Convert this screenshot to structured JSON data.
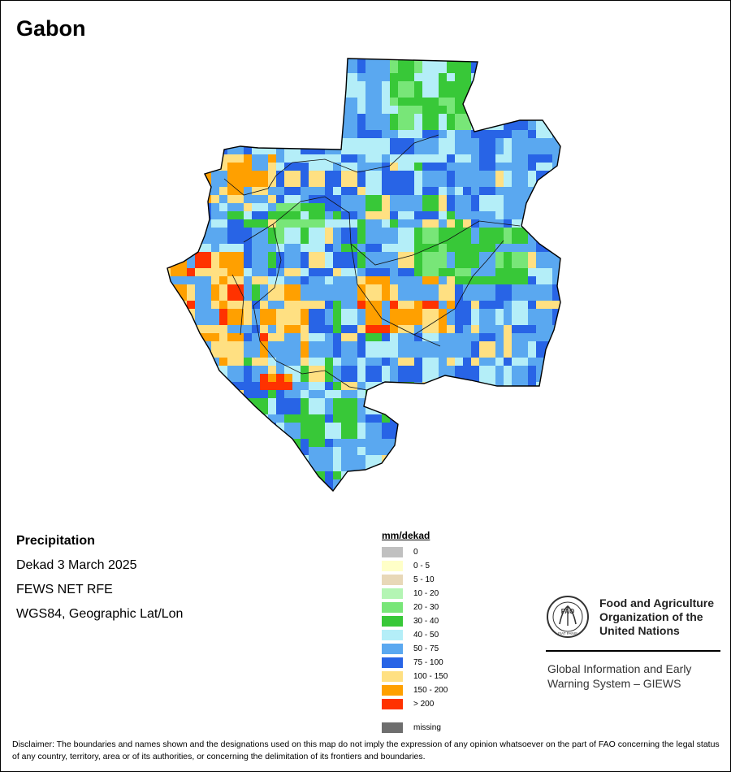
{
  "map": {
    "title": "Gabon",
    "info": {
      "heading": "Precipitation",
      "period": "Dekad 3 March 2025",
      "source": "FEWS NET RFE",
      "projection": "WGS84, Geographic Lat/Lon"
    }
  },
  "legend": {
    "title": "mm/dekad",
    "classes": [
      {
        "label": "0",
        "color": "#c0c0c0"
      },
      {
        "label": "0 - 5",
        "color": "#ffffc8"
      },
      {
        "label": "5 - 10",
        "color": "#e8d8b8"
      },
      {
        "label": "10 - 20",
        "color": "#b4f5b4"
      },
      {
        "label": "20 - 30",
        "color": "#78e678"
      },
      {
        "label": "30 - 40",
        "color": "#38c838"
      },
      {
        "label": "40 - 50",
        "color": "#b4eef8"
      },
      {
        "label": "50 - 75",
        "color": "#5aa8f0"
      },
      {
        "label": "75 - 100",
        "color": "#2864e6"
      },
      {
        "label": "100 - 150",
        "color": "#ffe082"
      },
      {
        "label": "150 - 200",
        "color": "#ffa000"
      },
      {
        "label": "> 200",
        "color": "#ff3200"
      }
    ],
    "missing": {
      "label": "missing",
      "color": "#6e6e6e"
    }
  },
  "fao": {
    "org_line1": "Food and Agriculture",
    "org_line2": "Organization of the",
    "org_line3": "United Nations",
    "system_line1": "Global Information and Early",
    "system_line2": "Warning System – GIEWS",
    "logo_text": "FAO",
    "logo_motto": "FIAT PANIS"
  },
  "disclaimer": "Disclaimer: The boundaries and names shown and the designations used on this map do not imply the expression of any opinion whatsoever on the part of FAO concerning the legal status of any country, territory, area or of its authorities, or concerning the delimitation of its frontiers and boundaries."
}
